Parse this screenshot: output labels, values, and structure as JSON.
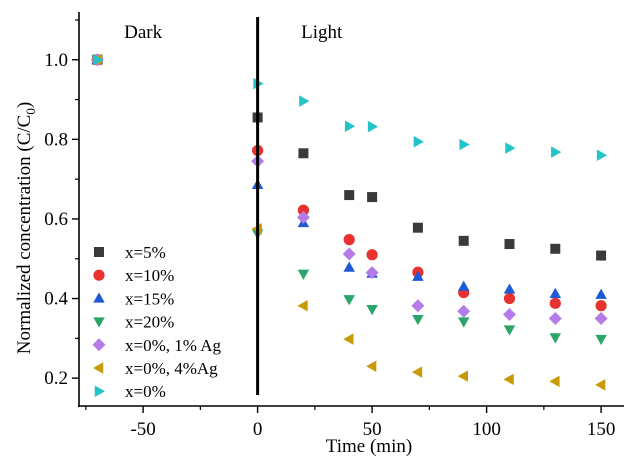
{
  "chart_data": {
    "type": "scatter",
    "xlabel": "Time (min)",
    "ylabel_main": "Normalized concentration (C/C",
    "ylabel_sub": "0",
    "ylabel_close": ")",
    "xlim": [
      -78,
      160
    ],
    "ylim": [
      0.13,
      1.12
    ],
    "xticks": [
      -50,
      0,
      50,
      100,
      150
    ],
    "xtick_labels": [
      "-50",
      "0",
      "50",
      "100",
      "150"
    ],
    "yticks": [
      0.2,
      0.4,
      0.6,
      0.8,
      1.0
    ],
    "ytick_labels": [
      "0.2",
      "0.4",
      "0.6",
      "0.8",
      "1.0"
    ],
    "divider_x": 0,
    "regions": [
      {
        "label": "Dark",
        "x": -50
      },
      {
        "label": "Light",
        "x": 19
      }
    ],
    "legend_position": "bottom-left",
    "series": [
      {
        "name": "x=5%",
        "marker": "square",
        "color": "#3a3a3a",
        "x": [
          -70,
          0,
          20,
          40,
          50,
          70,
          90,
          110,
          130,
          150
        ],
        "y": [
          1.0,
          0.855,
          0.765,
          0.66,
          0.655,
          0.578,
          0.545,
          0.537,
          0.525,
          0.508
        ]
      },
      {
        "name": "x=10%",
        "marker": "circle",
        "color": "#e8322f",
        "x": [
          -70,
          0,
          20,
          40,
          50,
          70,
          90,
          110,
          130,
          150
        ],
        "y": [
          1.0,
          0.772,
          0.622,
          0.548,
          0.51,
          0.466,
          0.415,
          0.4,
          0.388,
          0.382
        ]
      },
      {
        "name": "x=15%",
        "marker": "triangle-up",
        "color": "#1f5ad6",
        "x": [
          -70,
          0,
          20,
          40,
          50,
          70,
          90,
          110,
          130,
          150
        ],
        "y": [
          1.0,
          0.686,
          0.59,
          0.478,
          0.463,
          0.455,
          0.43,
          0.423,
          0.412,
          0.41
        ]
      },
      {
        "name": "x=20%",
        "marker": "triangle-down",
        "color": "#2aa66a",
        "x": [
          -70,
          0,
          20,
          40,
          50,
          70,
          90,
          110,
          130,
          150
        ],
        "y": [
          1.0,
          0.563,
          0.462,
          0.398,
          0.373,
          0.348,
          0.342,
          0.322,
          0.302,
          0.298
        ]
      },
      {
        "name": "x=0%, 1% Ag",
        "marker": "diamond",
        "color": "#b57be8",
        "x": [
          -70,
          0,
          20,
          40,
          50,
          70,
          90,
          110,
          130,
          150
        ],
        "y": [
          1.0,
          0.745,
          0.604,
          0.512,
          0.465,
          0.382,
          0.368,
          0.36,
          0.35,
          0.35
        ]
      },
      {
        "name": "x=0%, 4%Ag",
        "marker": "triangle-left",
        "color": "#c99a08",
        "x": [
          -70,
          0,
          20,
          40,
          50,
          70,
          90,
          110,
          130,
          150
        ],
        "y": [
          1.0,
          0.575,
          0.382,
          0.298,
          0.23,
          0.215,
          0.205,
          0.197,
          0.192,
          0.183
        ]
      },
      {
        "name": "x=0%",
        "marker": "triangle-right",
        "color": "#22c4c9",
        "x": [
          -70,
          0,
          20,
          40,
          50,
          70,
          90,
          110,
          130,
          150
        ],
        "y": [
          1.0,
          0.94,
          0.896,
          0.833,
          0.832,
          0.794,
          0.787,
          0.778,
          0.768,
          0.76
        ]
      }
    ]
  }
}
